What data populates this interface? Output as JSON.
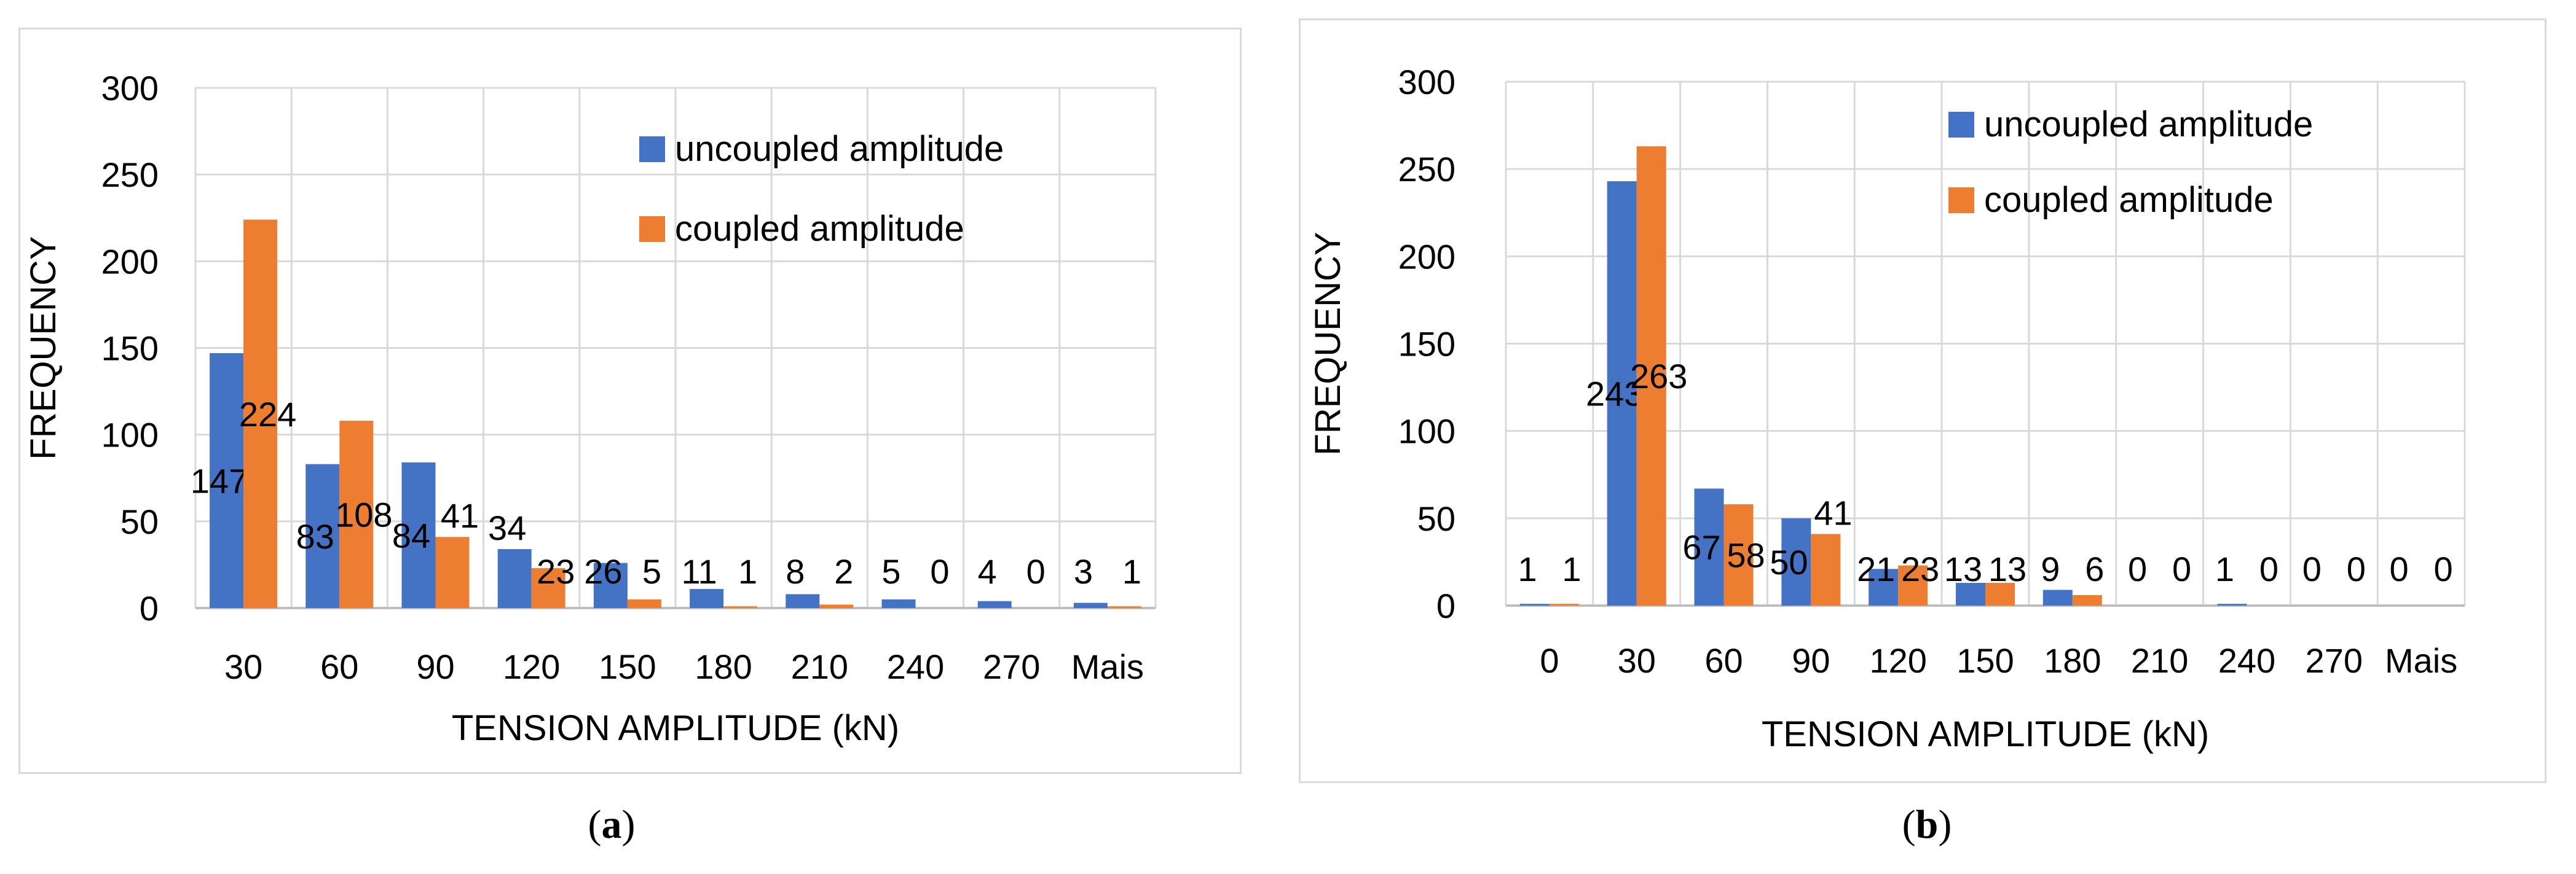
{
  "colors": {
    "uncoupled": "#4472C4",
    "coupled": "#ED7D31",
    "grid": "#d9d9d9",
    "text": "#000000"
  },
  "chart_data": [
    {
      "panel": "a",
      "type": "bar",
      "xlabel": "TENSION AMPLITUDE (kN)",
      "ylabel": "FREQUENCY",
      "ylim": [
        0,
        300
      ],
      "yticks": [
        0,
        50,
        100,
        150,
        200,
        250,
        300
      ],
      "categories": [
        "30",
        "60",
        "90",
        "120",
        "150",
        "180",
        "210",
        "240",
        "270",
        "Mais"
      ],
      "series": [
        {
          "name": "uncoupled amplitude",
          "values": [
            147,
            83,
            84,
            34,
            26,
            11,
            8,
            5,
            4,
            3
          ]
        },
        {
          "name": "coupled amplitude",
          "values": [
            224,
            108,
            41,
            23,
            5,
            1,
            2,
            0,
            0,
            1
          ]
        }
      ],
      "legend_position": "top-right",
      "caption_label": "a"
    },
    {
      "panel": "b",
      "type": "bar",
      "xlabel": "TENSION AMPLITUDE (kN)",
      "ylabel": "FREQUENCY",
      "ylim": [
        0,
        300
      ],
      "yticks": [
        0,
        50,
        100,
        150,
        200,
        250,
        300
      ],
      "categories": [
        "0",
        "30",
        "60",
        "90",
        "120",
        "150",
        "180",
        "210",
        "240",
        "270",
        "Mais"
      ],
      "series": [
        {
          "name": "uncoupled amplitude",
          "values": [
            1,
            243,
            67,
            50,
            21,
            13,
            9,
            0,
            1,
            0,
            0
          ]
        },
        {
          "name": "coupled amplitude",
          "values": [
            1,
            263,
            58,
            41,
            23,
            13,
            6,
            0,
            0,
            0,
            0
          ]
        }
      ],
      "legend_position": "top-right",
      "caption_label": "b"
    }
  ]
}
